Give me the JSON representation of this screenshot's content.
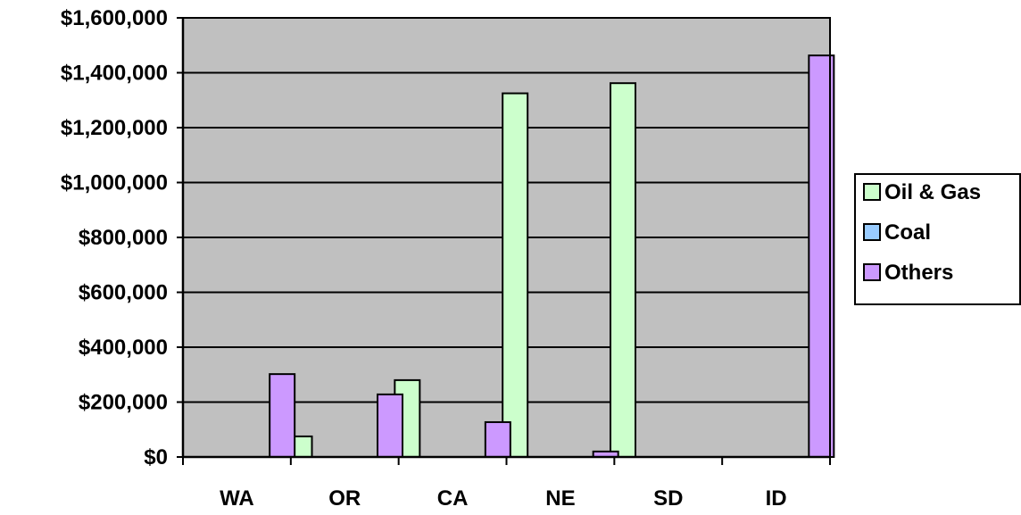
{
  "chart_data": {
    "type": "bar",
    "title": "",
    "xlabel": "",
    "ylabel": "",
    "categories": [
      "WA",
      "OR",
      "CA",
      "NE",
      "SD",
      "ID"
    ],
    "series": [
      {
        "name": "Oil & Gas",
        "color": "#ccffcc",
        "values": [
          0,
          75000,
          280000,
          1325000,
          1362000,
          0
        ]
      },
      {
        "name": "Coal",
        "color": "#99ccff",
        "values": [
          0,
          0,
          0,
          0,
          0,
          0
        ]
      },
      {
        "name": "Others",
        "color": "#cc99ff",
        "values": [
          302000,
          228000,
          127000,
          20000,
          0,
          1463000
        ]
      }
    ],
    "ylim": [
      0,
      1600000
    ],
    "yticks": [
      0,
      200000,
      400000,
      600000,
      800000,
      1000000,
      1200000,
      1400000,
      1600000
    ],
    "ytick_labels": [
      "$0",
      "$200,000",
      "$400,000",
      "$600,000",
      "$800,000",
      "$1,000,000",
      "$1,200,000",
      "$1,400,000",
      "$1,600,000"
    ],
    "grid": true,
    "legend_position": "right",
    "plot_background": "#c0c0c0"
  }
}
